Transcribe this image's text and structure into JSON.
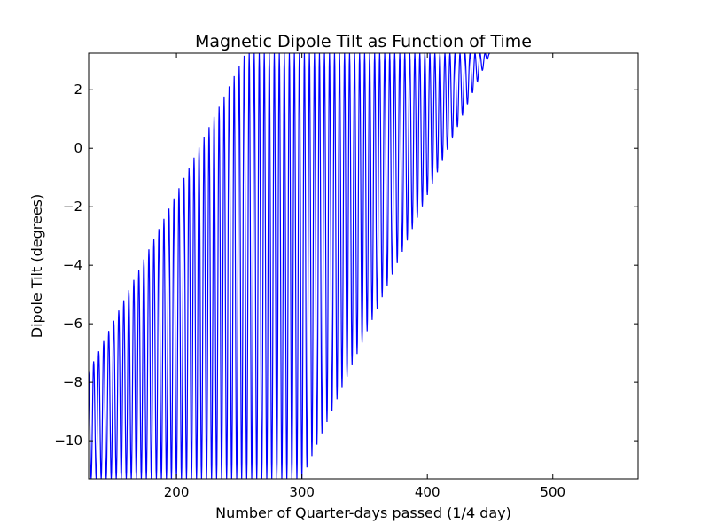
{
  "chart_data": {
    "type": "line",
    "title": "Magnetic Dipole Tilt as Function of Time",
    "xlabel": "Number of Quarter-days passed (1/4 day)",
    "ylabel": "Dipole Tilt (degrees)",
    "xlim": [
      130,
      568
    ],
    "ylim": [
      -11.3,
      3.25
    ],
    "xticks": [
      200,
      300,
      400,
      500
    ],
    "xtick_labels": [
      "200",
      "300",
      "400",
      "500"
    ],
    "yticks": [
      -10,
      -8,
      -6,
      -4,
      -2,
      0,
      2
    ],
    "ytick_labels": [
      "−10",
      "−8",
      "−6",
      "−4",
      "−2",
      "0",
      "2"
    ],
    "grid": false,
    "line_color": "#0000ff",
    "series": [
      {
        "x_start": 130,
        "x_step": 0.25,
        "x_end": 450,
        "description_of_oscillation": "",
        "upper_envelope": [
          [
            130,
            -7.6
          ],
          [
            135,
            -7.2
          ],
          [
            255,
            3.25
          ],
          [
            450,
            3.25
          ]
        ],
        "lower_envelope": [
          [
            130,
            -11.3
          ],
          [
            300,
            -11.3
          ],
          [
            450,
            3.25
          ]
        ],
        "oscillation_period": 4
      }
    ]
  }
}
